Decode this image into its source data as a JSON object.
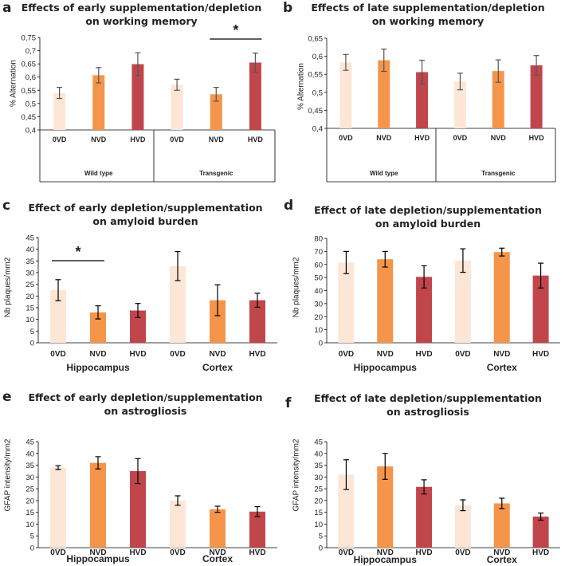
{
  "colors": {
    "light": "#fde6d5",
    "orange": "#f4954a",
    "dark": "#c0464c",
    "error": "#555555",
    "axis": "#000000",
    "text": "#222222"
  },
  "chart_data": [
    {
      "id": "a",
      "panel_letter": "a",
      "type": "bar",
      "title_lines": [
        "Effects of early supplementation/depletion",
        "on working memory"
      ],
      "ylabel": "% Alternation",
      "ylim": [
        0.4,
        0.75
      ],
      "yticks": [
        "0,4",
        "0,45",
        "0,5",
        "0,55",
        "0,6",
        "0,65",
        "0,7",
        "0,75"
      ],
      "categories": [
        "0VD",
        "NVD",
        "HVD",
        "0VD",
        "NVD",
        "HVD"
      ],
      "groups": [
        "Wild type",
        "Transgenic"
      ],
      "values": [
        0.54,
        0.607,
        0.649,
        0.571,
        0.535,
        0.655
      ],
      "errors": [
        0.021,
        0.029,
        0.043,
        0.021,
        0.026,
        0.036
      ],
      "significance": [
        {
          "label": "*",
          "from": 4,
          "to": 5
        }
      ]
    },
    {
      "id": "b",
      "panel_letter": "b",
      "type": "bar",
      "title_lines": [
        "Effects of late supplementation/depletion",
        "on working memory"
      ],
      "ylabel": "% Alternation",
      "ylim": [
        0.4,
        0.65
      ],
      "yticks": [
        "0,4",
        "0,45",
        "0,5",
        "0,55",
        "0,6",
        "0,65"
      ],
      "categories": [
        "0VD",
        "NVD",
        "HVD",
        "0VD",
        "NVD",
        "HVD"
      ],
      "groups": [
        "Wild type",
        "Transgenic"
      ],
      "values": [
        0.583,
        0.589,
        0.556,
        0.53,
        0.559,
        0.575
      ],
      "errors": [
        0.022,
        0.031,
        0.033,
        0.023,
        0.031,
        0.027
      ],
      "significance": []
    },
    {
      "id": "c",
      "panel_letter": "c",
      "type": "bar",
      "title_lines": [
        "Effect of early depletion/supplementation",
        "on amyloid burden"
      ],
      "ylabel": "Nb plaques/mm2",
      "ylim": [
        0,
        45
      ],
      "yticks": [
        "0",
        "5",
        "10",
        "15",
        "20",
        "25",
        "30",
        "35",
        "40",
        "45"
      ],
      "categories": [
        "0VD",
        "NVD",
        "HVD",
        "0VD",
        "NVD",
        "HVD"
      ],
      "groups": [
        "Hippocampus",
        "Cortex"
      ],
      "values": [
        22.5,
        13,
        13.8,
        32.8,
        18.2,
        18.2
      ],
      "errors": [
        4.5,
        2.8,
        3,
        6.2,
        6.6,
        3
      ],
      "significance": [
        {
          "label": "*",
          "from": 0,
          "to": 1
        }
      ]
    },
    {
      "id": "d",
      "panel_letter": "d",
      "type": "bar",
      "title_lines": [
        "Effect of late depletion/supplementation",
        "on amyloid burden"
      ],
      "ylabel": "Nb plaques/mm2",
      "ylim": [
        0,
        80
      ],
      "yticks": [
        "0",
        "10",
        "20",
        "30",
        "40",
        "50",
        "60",
        "70",
        "80"
      ],
      "categories": [
        "0VD",
        "NVD",
        "HVD",
        "0VD",
        "NVD",
        "HVD"
      ],
      "groups": [
        "Hippocampus",
        "Cortex"
      ],
      "values": [
        61.5,
        64,
        50.5,
        63,
        69.5,
        51.5
      ],
      "errors": [
        8.5,
        6,
        8.5,
        9,
        3,
        9.5
      ],
      "significance": []
    },
    {
      "id": "e",
      "panel_letter": "e",
      "type": "bar",
      "title_lines": [
        "Effect of early depletion/supplementation",
        "on astrogliosis"
      ],
      "ylabel": "GFAP intensity/mm2",
      "ylim": [
        0,
        45
      ],
      "yticks": [
        "0",
        "5",
        "10",
        "15",
        "20",
        "25",
        "30",
        "35",
        "40",
        "45"
      ],
      "categories": [
        "0VD",
        "NVD",
        "HVD",
        "0VD",
        "NVD",
        "HVD"
      ],
      "groups": [
        "Hippocampus",
        "Cortex"
      ],
      "values": [
        34,
        36,
        32.5,
        20,
        16.3,
        15.3
      ],
      "errors": [
        0.8,
        2.6,
        5.3,
        2,
        1.3,
        2.1
      ],
      "significance": []
    },
    {
      "id": "f",
      "panel_letter": "f",
      "type": "bar",
      "title_lines": [
        "Effect of late depletion/supplementation",
        "on astrogliosis"
      ],
      "ylabel": "GFAP intensity/mm2",
      "ylim": [
        0,
        45
      ],
      "yticks": [
        "0",
        "5",
        "10",
        "15",
        "20",
        "25",
        "30",
        "35",
        "40",
        "45"
      ],
      "categories": [
        "0VD",
        "NVD",
        "HVD",
        "0VD",
        "NVD",
        "HVD"
      ],
      "groups": [
        "Hippocampus",
        "Cortex"
      ],
      "values": [
        31,
        34.5,
        25.8,
        18,
        18.8,
        13.2
      ],
      "errors": [
        6.3,
        5.5,
        3,
        2.3,
        2.2,
        1.5
      ],
      "significance": []
    }
  ]
}
